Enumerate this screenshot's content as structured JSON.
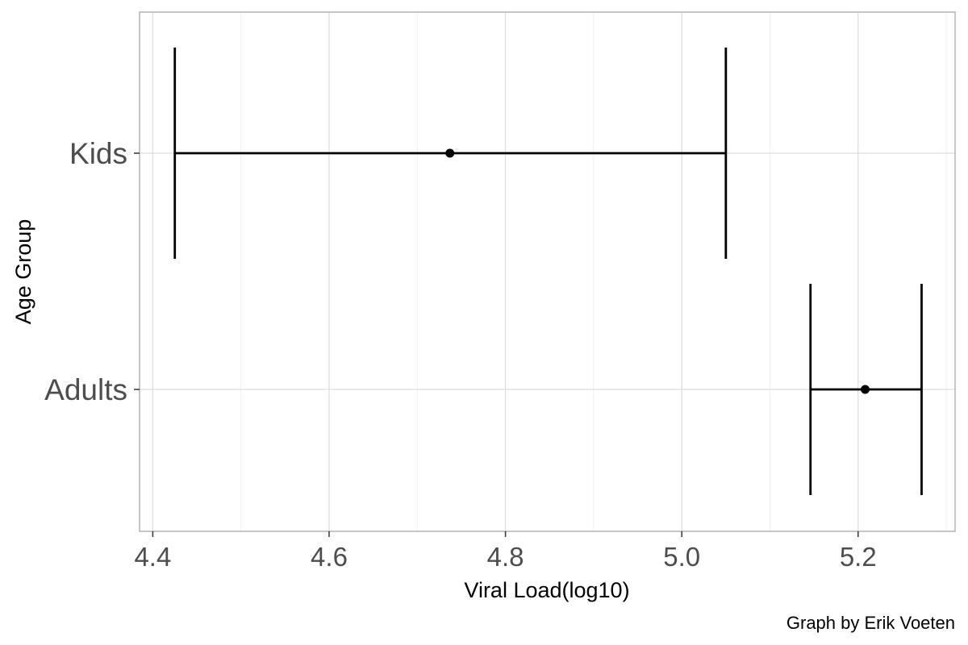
{
  "chart_data": {
    "type": "errorbar",
    "title": "",
    "xlabel": "Viral Load(log10)",
    "ylabel": "Age Group",
    "caption": "Graph by Erik Voeten",
    "xlim": [
      4.385,
      5.31
    ],
    "x_ticks": [
      4.4,
      4.6,
      4.8,
      5.0,
      5.2
    ],
    "x_tick_labels": [
      "4.4",
      "4.6",
      "4.8",
      "5.0",
      "5.2"
    ],
    "grid": true,
    "categories": [
      "Kids",
      "Adults"
    ],
    "points": [
      {
        "group": "Kids",
        "estimate": 4.737,
        "lower": 4.425,
        "upper": 5.05
      },
      {
        "group": "Adults",
        "estimate": 5.208,
        "lower": 5.146,
        "upper": 5.272
      }
    ],
    "colors": {
      "grid_major": "#dedede",
      "grid_minor": "#efefef",
      "panel_border": "#b3b3b3",
      "tick_text": "#4d4d4d",
      "marks": "#000000"
    }
  }
}
